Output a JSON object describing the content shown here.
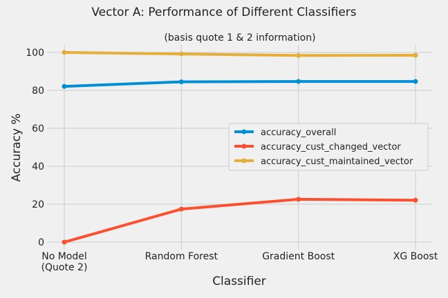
{
  "chart_data": {
    "type": "line",
    "title": "Vector A: Performance of Different Classifiers",
    "subtitle": "(basis quote 1 & 2 information)",
    "xlabel": "Classifier",
    "ylabel": "Accuracy %",
    "categories": [
      [
        "No Model",
        "(Quote 2)"
      ],
      [
        "Random Forest"
      ],
      [
        "Gradient Boost"
      ],
      [
        "XG Boost"
      ]
    ],
    "ylim": [
      -4,
      104
    ],
    "yticks": [
      0,
      20,
      40,
      60,
      80,
      100
    ],
    "grid": true,
    "legend_position": "center-right",
    "series": [
      {
        "name": "accuracy_overall",
        "color": "#008fd5",
        "values": [
          82.1,
          84.5,
          84.7,
          84.7
        ]
      },
      {
        "name": "accuracy_cust_changed_vector",
        "color": "#fc4f30",
        "values": [
          0,
          17.4,
          22.6,
          22.1
        ]
      },
      {
        "name": "accuracy_cust_maintained_vector",
        "color": "#e5ae38",
        "values": [
          100,
          99.2,
          98.4,
          98.5
        ]
      }
    ]
  }
}
